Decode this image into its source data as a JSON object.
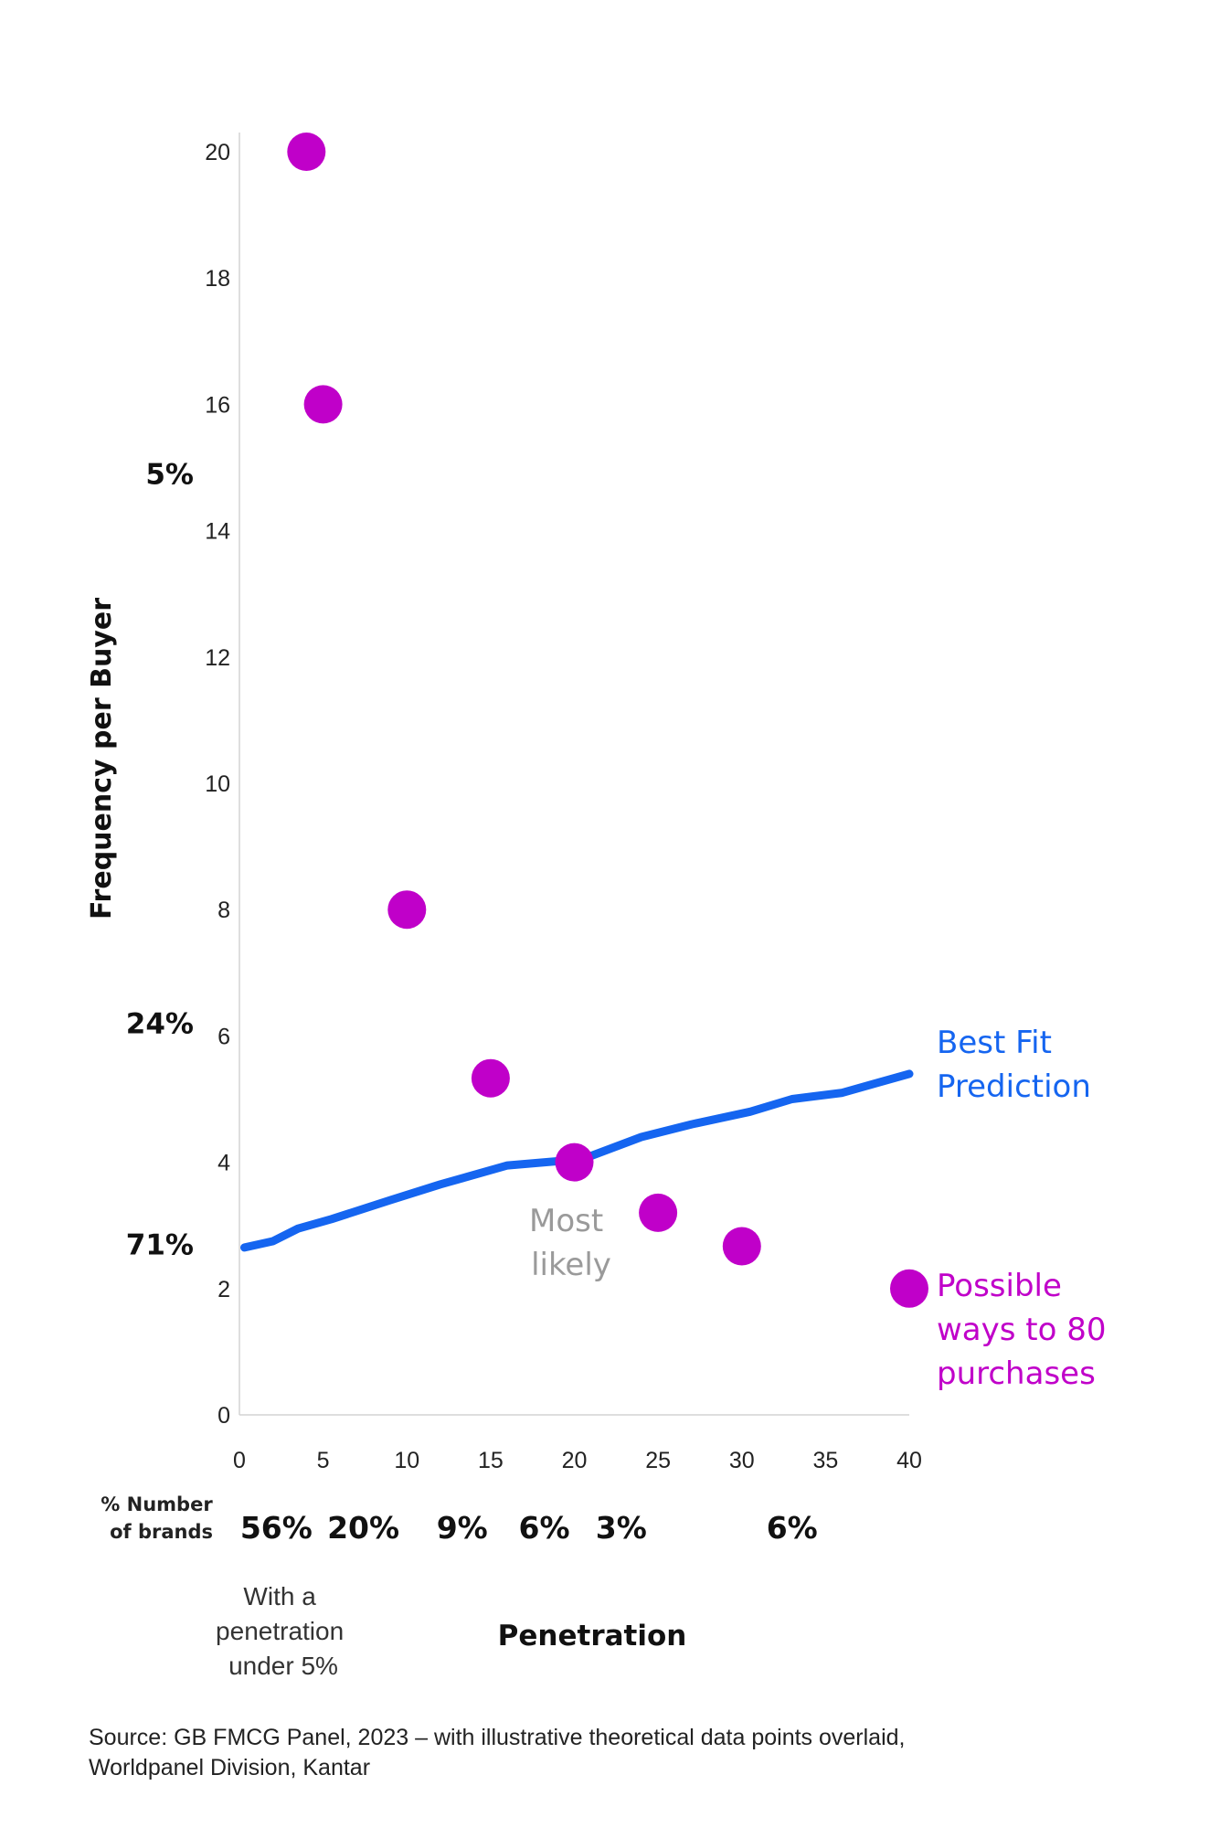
{
  "chart_data": {
    "type": "scatter",
    "xlabel": "Penetration",
    "ylabel": "Frequency per Buyer",
    "xlim": [
      0,
      40
    ],
    "ylim": [
      0,
      20
    ],
    "x_ticks": [
      "0",
      "5",
      "10",
      "15",
      "20",
      "25",
      "30",
      "35",
      "40"
    ],
    "y_ticks": [
      "0",
      "2",
      "4",
      "6",
      "8",
      "10",
      "12",
      "14",
      "16",
      "18",
      "20"
    ],
    "grid": false,
    "series": [
      {
        "name": "Possible ways to 80 purchases",
        "type": "scatter",
        "color": "#c000c9",
        "points": [
          {
            "x": 4,
            "y": 20
          },
          {
            "x": 5,
            "y": 16
          },
          {
            "x": 10,
            "y": 8
          },
          {
            "x": 15,
            "y": 5.33
          },
          {
            "x": 20,
            "y": 4
          },
          {
            "x": 25,
            "y": 3.2
          },
          {
            "x": 30,
            "y": 2.67
          },
          {
            "x": 40,
            "y": 2
          }
        ]
      },
      {
        "name": "Best Fit Prediction",
        "type": "line",
        "color": "#1565f0",
        "points": [
          {
            "x": 0.3,
            "y": 2.65
          },
          {
            "x": 2,
            "y": 2.75
          },
          {
            "x": 3.5,
            "y": 2.95
          },
          {
            "x": 5.5,
            "y": 3.1
          },
          {
            "x": 9,
            "y": 3.4
          },
          {
            "x": 12,
            "y": 3.65
          },
          {
            "x": 16,
            "y": 3.95
          },
          {
            "x": 20.5,
            "y": 4.05
          },
          {
            "x": 24,
            "y": 4.4
          },
          {
            "x": 27,
            "y": 4.6
          },
          {
            "x": 30.5,
            "y": 4.8
          },
          {
            "x": 33,
            "y": 5.0
          },
          {
            "x": 36,
            "y": 5.1
          },
          {
            "x": 38,
            "y": 5.25
          },
          {
            "x": 40,
            "y": 5.4
          }
        ]
      }
    ],
    "annotations": {
      "most_likely": [
        "Most",
        "likely"
      ],
      "best_fit_label": [
        "Best Fit",
        "Prediction"
      ],
      "possible_label": [
        "Possible",
        "ways to 80",
        "purchases"
      ],
      "frequency_bands": [
        {
          "label": "5%",
          "y": 14.9
        },
        {
          "label": "24%",
          "y": 6.2
        },
        {
          "label": "71%",
          "y": 2.7
        }
      ],
      "brands_row_label": [
        "% Number",
        "of brands"
      ],
      "brand_shares": [
        {
          "label": "56%",
          "x": 2.2
        },
        {
          "label": "20%",
          "x": 7.4
        },
        {
          "label": "9%",
          "x": 13.3
        },
        {
          "label": "6%",
          "x": 18.2
        },
        {
          "label": "3%",
          "x": 22.8
        },
        {
          "label": "6%",
          "x": 33.0
        }
      ],
      "under_note": [
        "With a",
        "penetration",
        "under 5%"
      ]
    }
  },
  "source": {
    "line1": "Source: GB FMCG Panel, 2023 – with illustrative theoretical data points overlaid,",
    "line2": "Worldpanel Division, Kantar"
  }
}
